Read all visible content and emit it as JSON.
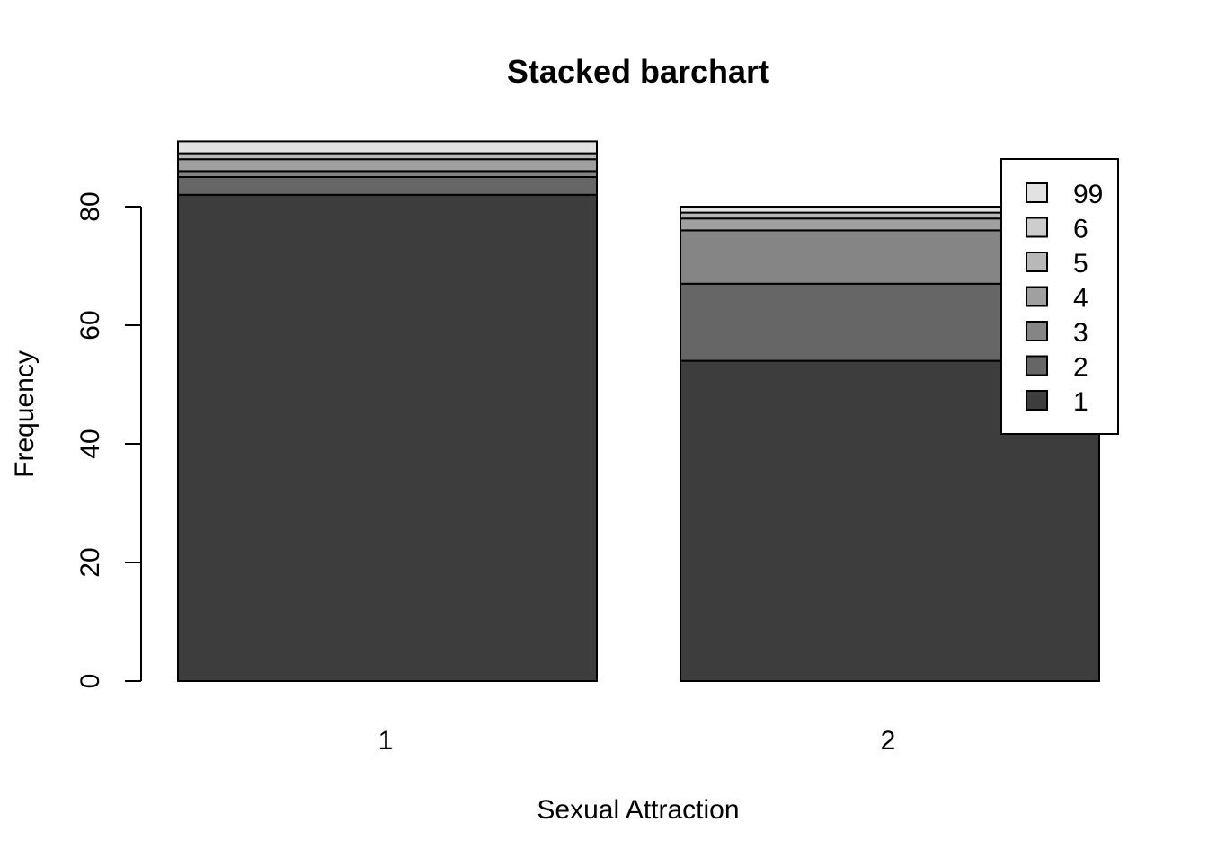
{
  "chart_data": {
    "type": "bar",
    "stacked": true,
    "title": "Stacked barchart",
    "xlabel": "Sexual Attraction",
    "ylabel": "Frequency",
    "categories": [
      "1",
      "2"
    ],
    "ylim": [
      0,
      91
    ],
    "yticks": [
      0,
      20,
      40,
      60,
      80
    ],
    "grid": false,
    "legend_position": "top-right",
    "series": [
      {
        "name": "1",
        "color": "#3d3d3d",
        "values": [
          82,
          54
        ]
      },
      {
        "name": "2",
        "color": "#666666",
        "values": [
          3,
          13
        ]
      },
      {
        "name": "3",
        "color": "#858585",
        "values": [
          1,
          9
        ]
      },
      {
        "name": "4",
        "color": "#a0a0a0",
        "values": [
          2,
          2
        ]
      },
      {
        "name": "5",
        "color": "#b8b8b8",
        "values": [
          1,
          1
        ]
      },
      {
        "name": "6",
        "color": "#cdcdcd",
        "values": [
          0,
          0
        ]
      },
      {
        "name": "99",
        "color": "#e2e2e2",
        "values": [
          2,
          1
        ]
      }
    ]
  }
}
